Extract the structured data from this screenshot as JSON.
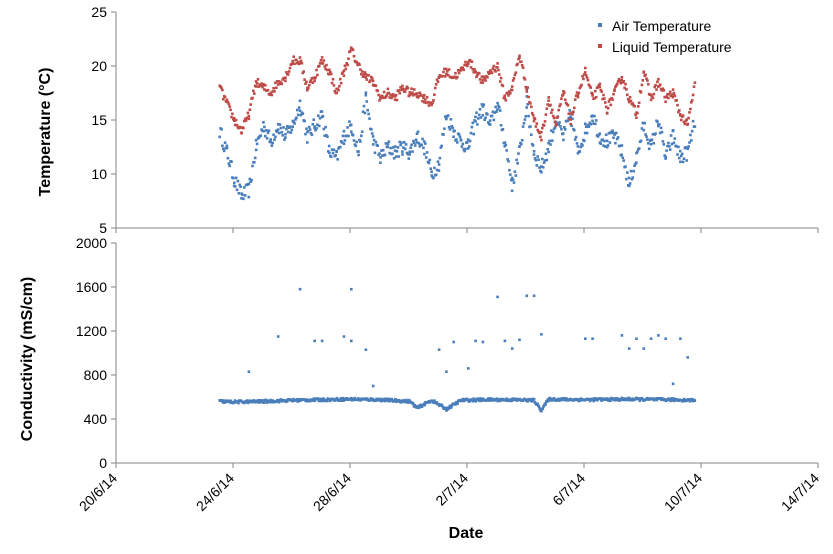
{
  "chart_data": [
    {
      "type": "scatter",
      "panel": "top",
      "ylabel": "Temperature (°C)",
      "ylim": [
        5,
        25
      ],
      "yticks": [
        5,
        10,
        15,
        20,
        25
      ],
      "xlim": [
        "20/6/14",
        "14/7/14"
      ],
      "grid": false,
      "legend": "top-right",
      "series": [
        {
          "name": "Air Temperature",
          "color": "#4a7ebb",
          "points": [
            [
              "23/6/14 12:00",
              14.0
            ],
            [
              "23/6/14 18:00",
              12.0
            ],
            [
              "24/6/14 00:00",
              9.5
            ],
            [
              "24/6/14 06:00",
              8.0
            ],
            [
              "24/6/14 12:00",
              8.5
            ],
            [
              "24/6/14 18:00",
              12.5
            ],
            [
              "25/6/14 00:00",
              14.5
            ],
            [
              "25/6/14 06:00",
              13.0
            ],
            [
              "25/6/14 12:00",
              14.5
            ],
            [
              "25/6/14 18:00",
              13.5
            ],
            [
              "26/6/14 00:00",
              14.5
            ],
            [
              "26/6/14 06:00",
              16.5
            ],
            [
              "26/6/14 12:00",
              13.5
            ],
            [
              "26/6/14 18:00",
              14.5
            ],
            [
              "27/6/14 00:00",
              15.5
            ],
            [
              "27/6/14 06:00",
              12.0
            ],
            [
              "27/6/14 12:00",
              11.5
            ],
            [
              "27/6/14 18:00",
              13.5
            ],
            [
              "28/6/14 00:00",
              14.5
            ],
            [
              "28/6/14 06:00",
              12.0
            ],
            [
              "28/6/14 12:00",
              17.0
            ],
            [
              "28/6/14 18:00",
              13.0
            ],
            [
              "29/6/14 00:00",
              11.5
            ],
            [
              "29/6/14 06:00",
              12.5
            ],
            [
              "29/6/14 12:00",
              12.0
            ],
            [
              "29/6/14 18:00",
              12.5
            ],
            [
              "30/6/14 00:00",
              12.0
            ],
            [
              "30/6/14 06:00",
              13.5
            ],
            [
              "30/6/14 12:00",
              12.5
            ],
            [
              "30/6/14 18:00",
              10.0
            ],
            [
              "1/7/14 00:00",
              11.0
            ],
            [
              "1/7/14 06:00",
              15.5
            ],
            [
              "1/7/14 12:00",
              14.0
            ],
            [
              "1/7/14 18:00",
              13.0
            ],
            [
              "2/7/14 00:00",
              12.5
            ],
            [
              "2/7/14 06:00",
              15.0
            ],
            [
              "2/7/14 12:00",
              16.0
            ],
            [
              "2/7/14 18:00",
              14.5
            ],
            [
              "3/7/14 00:00",
              16.5
            ],
            [
              "3/7/14 06:00",
              13.0
            ],
            [
              "3/7/14 12:00",
              9.0
            ],
            [
              "3/7/14 18:00",
              12.0
            ],
            [
              "4/7/14 00:00",
              16.5
            ],
            [
              "4/7/14 06:00",
              12.0
            ],
            [
              "4/7/14 12:00",
              10.5
            ],
            [
              "4/7/14 18:00",
              12.5
            ],
            [
              "5/7/14 00:00",
              15.0
            ],
            [
              "5/7/14 06:00",
              13.5
            ],
            [
              "5/7/14 12:00",
              15.5
            ],
            [
              "5/7/14 18:00",
              12.0
            ],
            [
              "6/7/14 00:00",
              14.0
            ],
            [
              "6/7/14 06:00",
              15.5
            ],
            [
              "6/7/14 12:00",
              13.5
            ],
            [
              "6/7/14 18:00",
              13.0
            ],
            [
              "7/7/14 00:00",
              13.5
            ],
            [
              "7/7/14 06:00",
              12.0
            ],
            [
              "7/7/14 12:00",
              9.0
            ],
            [
              "7/7/14 18:00",
              11.5
            ],
            [
              "8/7/14 00:00",
              14.5
            ],
            [
              "8/7/14 06:00",
              12.5
            ],
            [
              "8/7/14 12:00",
              15.0
            ],
            [
              "8/7/14 18:00",
              11.5
            ],
            [
              "9/7/14 00:00",
              13.5
            ],
            [
              "9/7/14 06:00",
              11.5
            ],
            [
              "9/7/14 12:00",
              12.0
            ],
            [
              "9/7/14 18:00",
              15.0
            ]
          ]
        },
        {
          "name": "Liquid Temperature",
          "color": "#be4b48",
          "points": [
            [
              "23/6/14 12:00",
              18.0
            ],
            [
              "23/6/14 18:00",
              16.5
            ],
            [
              "24/6/14 00:00",
              15.0
            ],
            [
              "24/6/14 06:00",
              14.0
            ],
            [
              "24/6/14 12:00",
              15.5
            ],
            [
              "24/6/14 18:00",
              18.5
            ],
            [
              "25/6/14 00:00",
              18.0
            ],
            [
              "25/6/14 06:00",
              17.5
            ],
            [
              "25/6/14 12:00",
              18.5
            ],
            [
              "25/6/14 18:00",
              19.0
            ],
            [
              "26/6/14 00:00",
              20.5
            ],
            [
              "26/6/14 06:00",
              20.5
            ],
            [
              "26/6/14 12:00",
              18.0
            ],
            [
              "26/6/14 18:00",
              19.0
            ],
            [
              "27/6/14 00:00",
              20.5
            ],
            [
              "27/6/14 06:00",
              19.5
            ],
            [
              "27/6/14 12:00",
              17.5
            ],
            [
              "27/6/14 18:00",
              19.5
            ],
            [
              "28/6/14 00:00",
              21.5
            ],
            [
              "28/6/14 06:00",
              20.0
            ],
            [
              "28/6/14 12:00",
              19.0
            ],
            [
              "28/6/14 18:00",
              18.5
            ],
            [
              "29/6/14 00:00",
              17.0
            ],
            [
              "29/6/14 06:00",
              17.5
            ],
            [
              "29/6/14 12:00",
              17.0
            ],
            [
              "29/6/14 18:00",
              18.0
            ],
            [
              "30/6/14 00:00",
              17.5
            ],
            [
              "30/6/14 06:00",
              17.5
            ],
            [
              "30/6/14 12:00",
              17.0
            ],
            [
              "30/6/14 18:00",
              16.5
            ],
            [
              "1/7/14 00:00",
              19.0
            ],
            [
              "1/7/14 06:00",
              19.5
            ],
            [
              "1/7/14 12:00",
              19.0
            ],
            [
              "1/7/14 18:00",
              19.5
            ],
            [
              "2/7/14 00:00",
              20.5
            ],
            [
              "2/7/14 06:00",
              19.5
            ],
            [
              "2/7/14 12:00",
              18.5
            ],
            [
              "2/7/14 18:00",
              19.5
            ],
            [
              "3/7/14 00:00",
              20.0
            ],
            [
              "3/7/14 06:00",
              17.0
            ],
            [
              "3/7/14 12:00",
              18.0
            ],
            [
              "3/7/14 18:00",
              21.0
            ],
            [
              "4/7/14 00:00",
              18.0
            ],
            [
              "4/7/14 06:00",
              15.0
            ],
            [
              "4/7/14 12:00",
              13.5
            ],
            [
              "4/7/14 18:00",
              17.0
            ],
            [
              "5/7/14 00:00",
              14.5
            ],
            [
              "5/7/14 06:00",
              17.5
            ],
            [
              "5/7/14 12:00",
              15.0
            ],
            [
              "5/7/14 18:00",
              17.5
            ],
            [
              "6/7/14 00:00",
              19.5
            ],
            [
              "6/7/14 06:00",
              17.0
            ],
            [
              "6/7/14 12:00",
              18.0
            ],
            [
              "6/7/14 18:00",
              16.0
            ],
            [
              "7/7/14 00:00",
              17.5
            ],
            [
              "7/7/14 06:00",
              19.0
            ],
            [
              "7/7/14 12:00",
              17.0
            ],
            [
              "7/7/14 18:00",
              15.5
            ],
            [
              "8/7/14 00:00",
              19.5
            ],
            [
              "8/7/14 06:00",
              17.0
            ],
            [
              "8/7/14 12:00",
              18.5
            ],
            [
              "8/7/14 18:00",
              17.0
            ],
            [
              "9/7/14 00:00",
              17.5
            ],
            [
              "9/7/14 06:00",
              15.5
            ],
            [
              "9/7/14 12:00",
              14.5
            ],
            [
              "9/7/14 18:00",
              18.5
            ]
          ]
        }
      ]
    },
    {
      "type": "scatter",
      "panel": "bottom",
      "xlabel": "Date",
      "ylabel": "Conductivity (mS/cm)",
      "ylim": [
        0,
        2000
      ],
      "yticks": [
        0,
        400,
        800,
        1200,
        1600,
        2000
      ],
      "xlim": [
        "20/6/14",
        "14/7/14"
      ],
      "xticks": [
        "20/6/14",
        "24/6/14",
        "28/6/14",
        "2/7/14",
        "6/7/14",
        "10/7/14",
        "14/7/14"
      ],
      "grid": false,
      "series": [
        {
          "color": "#4a7ebb",
          "baseline": [
            [
              "23/6/14 12:00",
              560
            ],
            [
              "24/6/14 00:00",
              555
            ],
            [
              "25/6/14 00:00",
              560
            ],
            [
              "26/6/14 00:00",
              570
            ],
            [
              "27/6/14 00:00",
              575
            ],
            [
              "28/6/14 00:00",
              580
            ],
            [
              "29/6/14 00:00",
              575
            ],
            [
              "30/6/14 00:00",
              560
            ],
            [
              "30/6/14 06:00",
              500
            ],
            [
              "30/6/14 18:00",
              570
            ],
            [
              "1/7/14 06:00",
              490
            ],
            [
              "1/7/14 18:00",
              570
            ],
            [
              "2/7/14 12:00",
              575
            ],
            [
              "3/7/14 12:00",
              575
            ],
            [
              "4/7/14 06:00",
              570
            ],
            [
              "4/7/14 12:00",
              480
            ],
            [
              "4/7/14 18:00",
              580
            ],
            [
              "6/7/14 00:00",
              575
            ],
            [
              "7/7/14 12:00",
              580
            ],
            [
              "9/7/14 00:00",
              575
            ],
            [
              "9/7/14 18:00",
              570
            ]
          ],
          "outliers": [
            [
              "24/6/14 12:00",
              830
            ],
            [
              "25/6/14 12:00",
              1150
            ],
            [
              "26/6/14 06:00",
              1580
            ],
            [
              "26/6/14 18:00",
              1110
            ],
            [
              "27/6/14 00:00",
              1110
            ],
            [
              "27/6/14 18:00",
              1150
            ],
            [
              "28/6/14 00:00",
              1580
            ],
            [
              "28/6/14 00:00",
              1110
            ],
            [
              "28/6/14 12:00",
              1030
            ],
            [
              "28/6/14 18:00",
              700
            ],
            [
              "1/7/14 00:00",
              1030
            ],
            [
              "1/7/14 06:00",
              830
            ],
            [
              "1/7/14 12:00",
              1100
            ],
            [
              "2/7/14 00:00",
              860
            ],
            [
              "2/7/14 06:00",
              1110
            ],
            [
              "2/7/14 12:00",
              1100
            ],
            [
              "3/7/14 00:00",
              1510
            ],
            [
              "3/7/14 06:00",
              1110
            ],
            [
              "3/7/14 12:00",
              1040
            ],
            [
              "3/7/14 18:00",
              1120
            ],
            [
              "4/7/14 00:00",
              1520
            ],
            [
              "4/7/14 06:00",
              1520
            ],
            [
              "4/7/14 12:00",
              1170
            ],
            [
              "6/7/14 00:00",
              1130
            ],
            [
              "6/7/14 06:00",
              1130
            ],
            [
              "7/7/14 06:00",
              1160
            ],
            [
              "7/7/14 12:00",
              1040
            ],
            [
              "7/7/14 18:00",
              1130
            ],
            [
              "8/7/14 00:00",
              1040
            ],
            [
              "8/7/14 06:00",
              1130
            ],
            [
              "8/7/14 12:00",
              1160
            ],
            [
              "8/7/14 18:00",
              1130
            ],
            [
              "9/7/14 00:00",
              720
            ],
            [
              "9/7/14 06:00",
              1130
            ],
            [
              "9/7/14 12:00",
              960
            ]
          ]
        }
      ]
    }
  ]
}
